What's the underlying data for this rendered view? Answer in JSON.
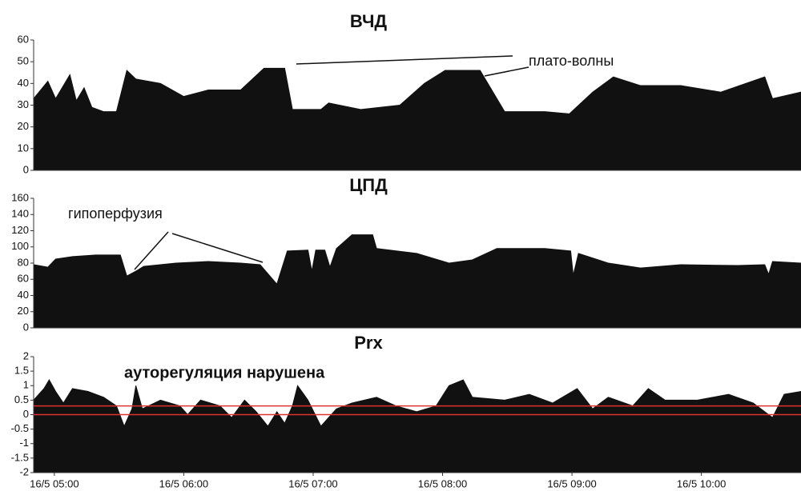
{
  "chart_data": [
    {
      "type": "area",
      "title": "ВЧД",
      "annotation": "плато-волны",
      "color": "#111111",
      "x": [
        4.84,
        4.95,
        5.01,
        5.12,
        5.17,
        5.23,
        5.29,
        5.38,
        5.48,
        5.56,
        5.63,
        5.82,
        6.0,
        6.19,
        6.44,
        6.62,
        6.78,
        6.84,
        7.06,
        7.12,
        7.37,
        7.67,
        7.86,
        8.02,
        8.29,
        8.48,
        8.79,
        8.98,
        9.16,
        9.32,
        9.53,
        9.84,
        10.15,
        10.49,
        10.55,
        10.77
      ],
      "values": [
        33,
        41,
        33,
        44,
        32,
        38,
        29,
        27,
        27,
        46,
        42,
        40,
        34,
        37,
        37,
        47,
        47,
        28,
        28,
        31,
        28,
        30,
        40,
        46,
        46,
        27,
        27,
        26,
        36,
        43,
        39,
        39,
        36,
        43,
        33,
        36
      ],
      "xlim": [
        4.84,
        10.77
      ],
      "ylim": [
        0,
        60
      ],
      "yticks": [
        0,
        10,
        20,
        30,
        40,
        50,
        60
      ]
    },
    {
      "type": "area",
      "title": "ЦПД",
      "annotation": "гипоперфузия",
      "color": "#111111",
      "x": [
        4.84,
        4.95,
        5.01,
        5.14,
        5.32,
        5.51,
        5.56,
        5.63,
        5.69,
        5.94,
        6.19,
        6.44,
        6.59,
        6.72,
        6.8,
        6.96,
        6.99,
        7.02,
        7.09,
        7.13,
        7.18,
        7.3,
        7.46,
        7.49,
        7.8,
        8.05,
        8.23,
        8.42,
        8.79,
        8.99,
        9.01,
        9.05,
        9.28,
        9.53,
        9.84,
        10.28,
        10.49,
        10.52,
        10.55,
        10.77
      ],
      "values": [
        78,
        75,
        85,
        88,
        90,
        90,
        64,
        70,
        76,
        80,
        82,
        80,
        78,
        54,
        95,
        96,
        70,
        96,
        96,
        75,
        98,
        115,
        115,
        98,
        92,
        80,
        84,
        98,
        98,
        95,
        65,
        92,
        80,
        74,
        78,
        77,
        78,
        66,
        82,
        80
      ],
      "xlim": [
        4.84,
        10.77
      ],
      "ylim": [
        0,
        160
      ],
      "yticks": [
        0,
        20,
        40,
        60,
        80,
        100,
        120,
        140,
        160
      ]
    },
    {
      "type": "area",
      "title": "Prx",
      "annotation": "ауторегуляция нарушена",
      "color": "#111111",
      "x": [
        4.84,
        4.92,
        4.96,
        5.01,
        5.07,
        5.14,
        5.26,
        5.38,
        5.48,
        5.54,
        5.6,
        5.63,
        5.68,
        5.82,
        5.97,
        6.03,
        6.13,
        6.28,
        6.37,
        6.47,
        6.56,
        6.65,
        6.72,
        6.78,
        6.84,
        6.88,
        6.96,
        7.06,
        7.18,
        7.3,
        7.49,
        7.64,
        7.8,
        7.95,
        8.05,
        8.16,
        8.23,
        8.48,
        8.67,
        8.85,
        9.04,
        9.16,
        9.28,
        9.47,
        9.59,
        9.72,
        9.97,
        10.21,
        10.4,
        10.55,
        10.64,
        10.77
      ],
      "values": [
        0.5,
        0.9,
        1.2,
        0.8,
        0.4,
        0.9,
        0.8,
        0.6,
        0.3,
        -0.4,
        0.2,
        1.0,
        0.2,
        0.5,
        0.3,
        0,
        0.5,
        0.3,
        -0.1,
        0.5,
        0.1,
        -0.4,
        0.1,
        -0.3,
        0.3,
        1.0,
        0.5,
        -0.4,
        0.2,
        0.4,
        0.6,
        0.3,
        0.1,
        0.3,
        1.0,
        1.2,
        0.6,
        0.5,
        0.7,
        0.4,
        0.9,
        0.2,
        0.6,
        0.3,
        0.9,
        0.5,
        0.5,
        0.7,
        0.4,
        -0.1,
        0.7,
        0.8
      ],
      "reference_lines": [
        0.3,
        0
      ],
      "reference_color": "#e03030",
      "xlim": [
        4.84,
        10.77
      ],
      "ylim": [
        -2,
        2
      ],
      "yticks": [
        -2,
        -1.5,
        -1,
        -0.5,
        0,
        0.5,
        1,
        1.5,
        2
      ],
      "xticks": [
        {
          "value": 5,
          "label": "16/5 05:00"
        },
        {
          "value": 6,
          "label": "16/5 06:00"
        },
        {
          "value": 7,
          "label": "16/5 07:00"
        },
        {
          "value": 8,
          "label": "16/5 08:00"
        },
        {
          "value": 9,
          "label": "16/5 09:00"
        },
        {
          "value": 10,
          "label": "16/5 10:00"
        }
      ]
    }
  ]
}
